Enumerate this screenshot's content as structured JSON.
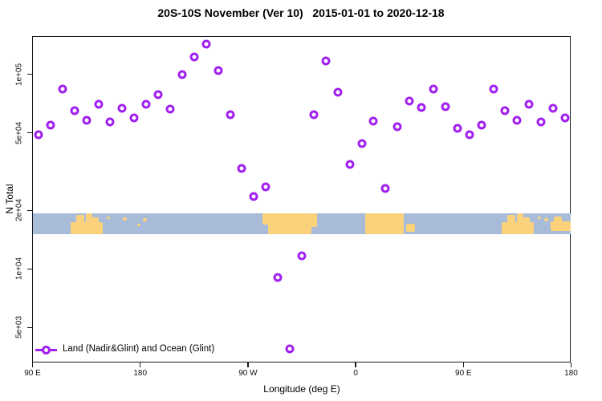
{
  "page": {
    "title": "20S-10S November (Ver 10)   2015-01-01 to 2020-12-18"
  },
  "chart_data": {
    "type": "scatter",
    "title": "20S-10S November (Ver 10)   2015-01-01 to 2020-12-18",
    "xlabel": "Longitude (deg E)",
    "ylabel": "N Total",
    "x_axis": {
      "note": "longitude axis wraps eastward from 90E; 450 degrees total, 90E-180 segment repeated",
      "domain_deg": [
        90,
        540
      ],
      "ticks": [
        {
          "deg": 90,
          "label": "90 E"
        },
        {
          "deg": 180,
          "label": "180"
        },
        {
          "deg": 270,
          "label": "90 W"
        },
        {
          "deg": 360,
          "label": "0"
        },
        {
          "deg": 450,
          "label": "90 E"
        },
        {
          "deg": 540,
          "label": "180"
        }
      ]
    },
    "y_axis": {
      "scale": "log",
      "range": [
        3300,
        157000
      ],
      "ticks": [
        {
          "value": 100000,
          "label": "1e+05"
        },
        {
          "value": 50000,
          "label": "5e+04"
        },
        {
          "value": 20000,
          "label": "2e+04"
        },
        {
          "value": 10000,
          "label": "1e+04"
        },
        {
          "value": 5000,
          "label": "5e+03"
        }
      ]
    },
    "legend": {
      "label": "Land (Nadir&Glint) and Ocean (Glint)",
      "position": "bottom-left"
    },
    "series": [
      {
        "name": "Land (Nadir&Glint) and Ocean (Glint)",
        "marker": "open-circle",
        "color": "#a020f0",
        "points": [
          [
            95,
            49000
          ],
          [
            105,
            55000
          ],
          [
            115,
            84000
          ],
          [
            125,
            65000
          ],
          [
            135,
            58000
          ],
          [
            145,
            70000
          ],
          [
            155,
            57000
          ],
          [
            165,
            67000
          ],
          [
            175,
            60000
          ],
          [
            185,
            70000
          ],
          [
            195,
            79000
          ],
          [
            205,
            66500
          ],
          [
            215,
            100000
          ],
          [
            225,
            123000
          ],
          [
            235,
            143000
          ],
          [
            245,
            105000
          ],
          [
            255,
            62000
          ],
          [
            265,
            33000
          ],
          [
            275,
            23500
          ],
          [
            285,
            26500
          ],
          [
            295,
            9000
          ],
          [
            305,
            3900
          ],
          [
            315,
            11700
          ],
          [
            325,
            62000
          ],
          [
            335,
            117000
          ],
          [
            345,
            81000
          ],
          [
            355,
            34500
          ],
          [
            365,
            44000
          ],
          [
            375,
            57500
          ],
          [
            385,
            26000
          ],
          [
            395,
            54000
          ],
          [
            405,
            73000
          ],
          [
            415,
            67500
          ],
          [
            425,
            84000
          ],
          [
            435,
            68000
          ],
          [
            445,
            53000
          ],
          [
            455,
            49000
          ],
          [
            465,
            55000
          ],
          [
            475,
            84000
          ],
          [
            485,
            65000
          ],
          [
            495,
            58000
          ],
          [
            505,
            70000
          ],
          [
            515,
            57000
          ],
          [
            525,
            67000
          ],
          [
            535,
            60000
          ]
        ]
      }
    ],
    "map_strip": {
      "description": "20S-10S latitude band world map overlay",
      "ocean_color": "#a8bcda",
      "land_color": "#fbd27b",
      "land_rects": [
        {
          "x": 47,
          "y": 11,
          "w": 40,
          "h": 15
        },
        {
          "x": 54,
          "y": 2,
          "w": 10,
          "h": 12
        },
        {
          "x": 66,
          "y": 0,
          "w": 8,
          "h": 14
        },
        {
          "x": 74,
          "y": 5,
          "w": 8,
          "h": 10
        },
        {
          "x": 92,
          "y": 4,
          "w": 4,
          "h": 3
        },
        {
          "x": 112,
          "y": 5,
          "w": 5,
          "h": 4
        },
        {
          "x": 130,
          "y": 13,
          "w": 4,
          "h": 3
        },
        {
          "x": 137,
          "y": 6,
          "w": 5,
          "h": 4
        },
        {
          "x": 286,
          "y": 0,
          "w": 12,
          "h": 14
        },
        {
          "x": 293,
          "y": 0,
          "w": 54,
          "h": 26
        },
        {
          "x": 347,
          "y": 0,
          "w": 7,
          "h": 17
        },
        {
          "x": 414,
          "y": 0,
          "w": 48,
          "h": 26
        },
        {
          "x": 465,
          "y": 13,
          "w": 11,
          "h": 10
        },
        {
          "x": 584,
          "y": 11,
          "w": 40,
          "h": 15
        },
        {
          "x": 591,
          "y": 2,
          "w": 10,
          "h": 12
        },
        {
          "x": 603,
          "y": 0,
          "w": 8,
          "h": 14
        },
        {
          "x": 611,
          "y": 5,
          "w": 8,
          "h": 10
        },
        {
          "x": 629,
          "y": 4,
          "w": 4,
          "h": 3
        },
        {
          "x": 645,
          "y": 10,
          "w": 26,
          "h": 12
        },
        {
          "x": 649,
          "y": 4,
          "w": 10,
          "h": 8
        },
        {
          "x": 637,
          "y": 6,
          "w": 5,
          "h": 4
        }
      ]
    }
  }
}
